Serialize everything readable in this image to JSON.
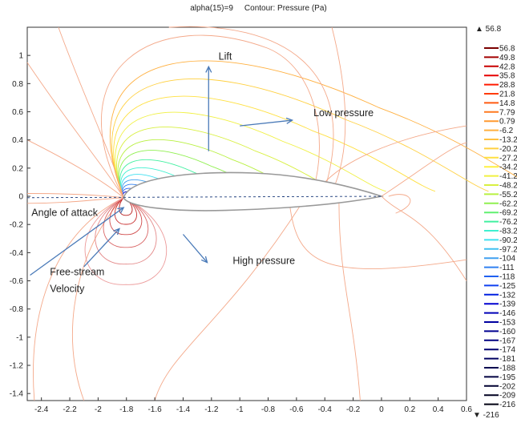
{
  "title": {
    "left": "alpha(15)=9",
    "right": "Contour: Pressure (Pa)"
  },
  "chart_data": {
    "type": "contour",
    "title": "Contour: Pressure (Pa)",
    "parameter_label": "alpha(15)=9",
    "xlim": [
      -2.5,
      0.6
    ],
    "ylim": [
      -1.45,
      1.2
    ],
    "x_ticks": [
      -2.4,
      -2.2,
      -2,
      -1.8,
      -1.6,
      -1.4,
      -1.2,
      -1,
      -0.8,
      -0.6,
      -0.4,
      -0.2,
      0,
      0.2,
      0.4,
      0.6
    ],
    "y_ticks": [
      1,
      0.8,
      0.6,
      0.4,
      0.2,
      0,
      -0.2,
      -0.4,
      -0.6,
      -0.8,
      -1,
      -1.2,
      -1.4
    ],
    "grid": false,
    "colorbar": {
      "max_label": "▲ 56.8",
      "min_label": "▼ -216",
      "levels": [
        "56.8",
        "49.8",
        "42.8",
        "35.8",
        "28.8",
        "21.8",
        "14.8",
        "7.79",
        "0.79",
        "-6.2",
        "-13.2",
        "-20.2",
        "-27.2",
        "-34.2",
        "-41.2",
        "-48.2",
        "-55.2",
        "-62.2",
        "-69.2",
        "-76.2",
        "-83.2",
        "-90.2",
        "-97.2",
        "-104",
        "-111",
        "-118",
        "-125",
        "-132",
        "-139",
        "-146",
        "-153",
        "-160",
        "-167",
        "-174",
        "-181",
        "-188",
        "-195",
        "-202",
        "-209",
        "-216"
      ],
      "colors": [
        "#7a0000",
        "#a30000",
        "#c80000",
        "#e60000",
        "#ff1a00",
        "#ff3a00",
        "#ff5a10",
        "#ff7a20",
        "#ff9a30",
        "#ffb040",
        "#ffc040",
        "#ffd040",
        "#ffe040",
        "#fff040",
        "#f0f040",
        "#d8f040",
        "#b8f040",
        "#90f050",
        "#60f070",
        "#40f0a0",
        "#40f0d0",
        "#40e0f0",
        "#40c0f0",
        "#40a0f0",
        "#3080f0",
        "#2060f0",
        "#1040f0",
        "#0020e0",
        "#0000d0",
        "#0000b8",
        "#0000a0",
        "#000090",
        "#000080",
        "#000070",
        "#000060",
        "#000050",
        "#000040",
        "#000030",
        "#000020",
        "#000010"
      ]
    },
    "airfoil": {
      "leading_edge": [
        -1.82,
        -0.01
      ],
      "trailing_edge": [
        0.0,
        0.0
      ],
      "chord_line_style": "dashed"
    },
    "annotations": [
      {
        "text": "Lift",
        "x": -1.15,
        "y": 0.97
      },
      {
        "text": "Low pressure",
        "x": -0.48,
        "y": 0.57
      },
      {
        "text": "Angle of attack",
        "x": -2.47,
        "y": -0.14
      },
      {
        "text": "High pressure",
        "x": -1.05,
        "y": -0.48
      },
      {
        "text": "Free-stream",
        "x": -2.34,
        "y": -0.56
      },
      {
        "text": "Velocity",
        "x": -2.34,
        "y": -0.68
      }
    ],
    "arrows": [
      {
        "from": [
          -1.22,
          0.32
        ],
        "to": [
          -1.22,
          0.92
        ]
      },
      {
        "from": [
          -1.0,
          0.5
        ],
        "to": [
          -0.63,
          0.54
        ]
      },
      {
        "from": [
          -2.48,
          -0.56
        ],
        "to": [
          -1.82,
          -0.08
        ]
      },
      {
        "from": [
          -2.1,
          -0.5
        ],
        "to": [
          -1.85,
          -0.23
        ]
      },
      {
        "from": [
          -1.4,
          -0.27
        ],
        "to": [
          -1.23,
          -0.47
        ]
      }
    ],
    "arrow_color": "#4a7ab8"
  }
}
